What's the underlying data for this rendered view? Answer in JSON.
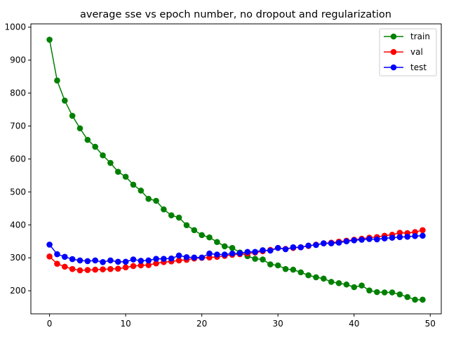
{
  "chart_data": {
    "type": "line",
    "title": "average sse vs epoch number, no dropout and regularization",
    "xlabel": "",
    "ylabel": "",
    "xlim": [
      -2.45,
      51.45
    ],
    "ylim": [
      130,
      1010
    ],
    "xticks": [
      0,
      10,
      20,
      30,
      40,
      50
    ],
    "yticks": [
      200,
      300,
      400,
      500,
      600,
      700,
      800,
      900,
      1000
    ],
    "grid": false,
    "legend_position": "upper right",
    "x": [
      0,
      1,
      2,
      3,
      4,
      5,
      6,
      7,
      8,
      9,
      10,
      11,
      12,
      13,
      14,
      15,
      16,
      17,
      18,
      19,
      20,
      21,
      22,
      23,
      24,
      25,
      26,
      27,
      28,
      29,
      30,
      31,
      32,
      33,
      34,
      35,
      36,
      37,
      38,
      39,
      40,
      41,
      42,
      43,
      44,
      45,
      46,
      47,
      48,
      49
    ],
    "series": [
      {
        "name": "train",
        "color": "#008000",
        "values": [
          962,
          838,
          777,
          731,
          693,
          658,
          637,
          611,
          588,
          561,
          546,
          522,
          504,
          479,
          473,
          447,
          429,
          422,
          399,
          384,
          369,
          362,
          348,
          335,
          330,
          316,
          305,
          297,
          295,
          280,
          277,
          266,
          264,
          256,
          247,
          241,
          237,
          227,
          223,
          219,
          211,
          216,
          201,
          196,
          195,
          195,
          189,
          181,
          173,
          173
        ]
      },
      {
        "name": "val",
        "color": "#ff0000",
        "values": [
          304,
          282,
          273,
          266,
          262,
          263,
          264,
          265,
          266,
          267,
          271,
          275,
          277,
          278,
          283,
          287,
          289,
          292,
          294,
          298,
          300,
          301,
          303,
          306,
          309,
          311,
          313,
          316,
          320,
          324,
          330,
          327,
          330,
          332,
          336,
          340,
          344,
          346,
          349,
          352,
          355,
          358,
          361,
          363,
          367,
          370,
          376,
          375,
          378,
          384
        ]
      },
      {
        "name": "test",
        "color": "#0000ff",
        "values": [
          340,
          311,
          303,
          296,
          292,
          290,
          292,
          287,
          292,
          288,
          288,
          295,
          291,
          292,
          297,
          297,
          298,
          307,
          302,
          301,
          301,
          313,
          310,
          310,
          313,
          314,
          318,
          318,
          323,
          322,
          330,
          326,
          332,
          332,
          337,
          339,
          344,
          344,
          346,
          350,
          353,
          355,
          357,
          356,
          359,
          361,
          363,
          364,
          366,
          367
        ]
      }
    ]
  }
}
